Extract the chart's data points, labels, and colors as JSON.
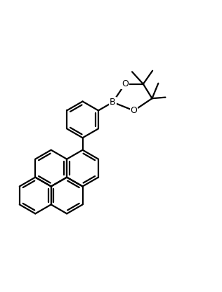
{
  "bg_color": "#ffffff",
  "bond_color": "#000000",
  "lw": 1.6,
  "lw_thin": 1.6,
  "atom_labels": {
    "B": {
      "text": "B",
      "fontsize": 9,
      "color": "#000000"
    },
    "O": {
      "text": "O",
      "fontsize": 9,
      "color": "#000000"
    }
  },
  "figsize": [
    3.16,
    4.16
  ],
  "dpi": 100
}
